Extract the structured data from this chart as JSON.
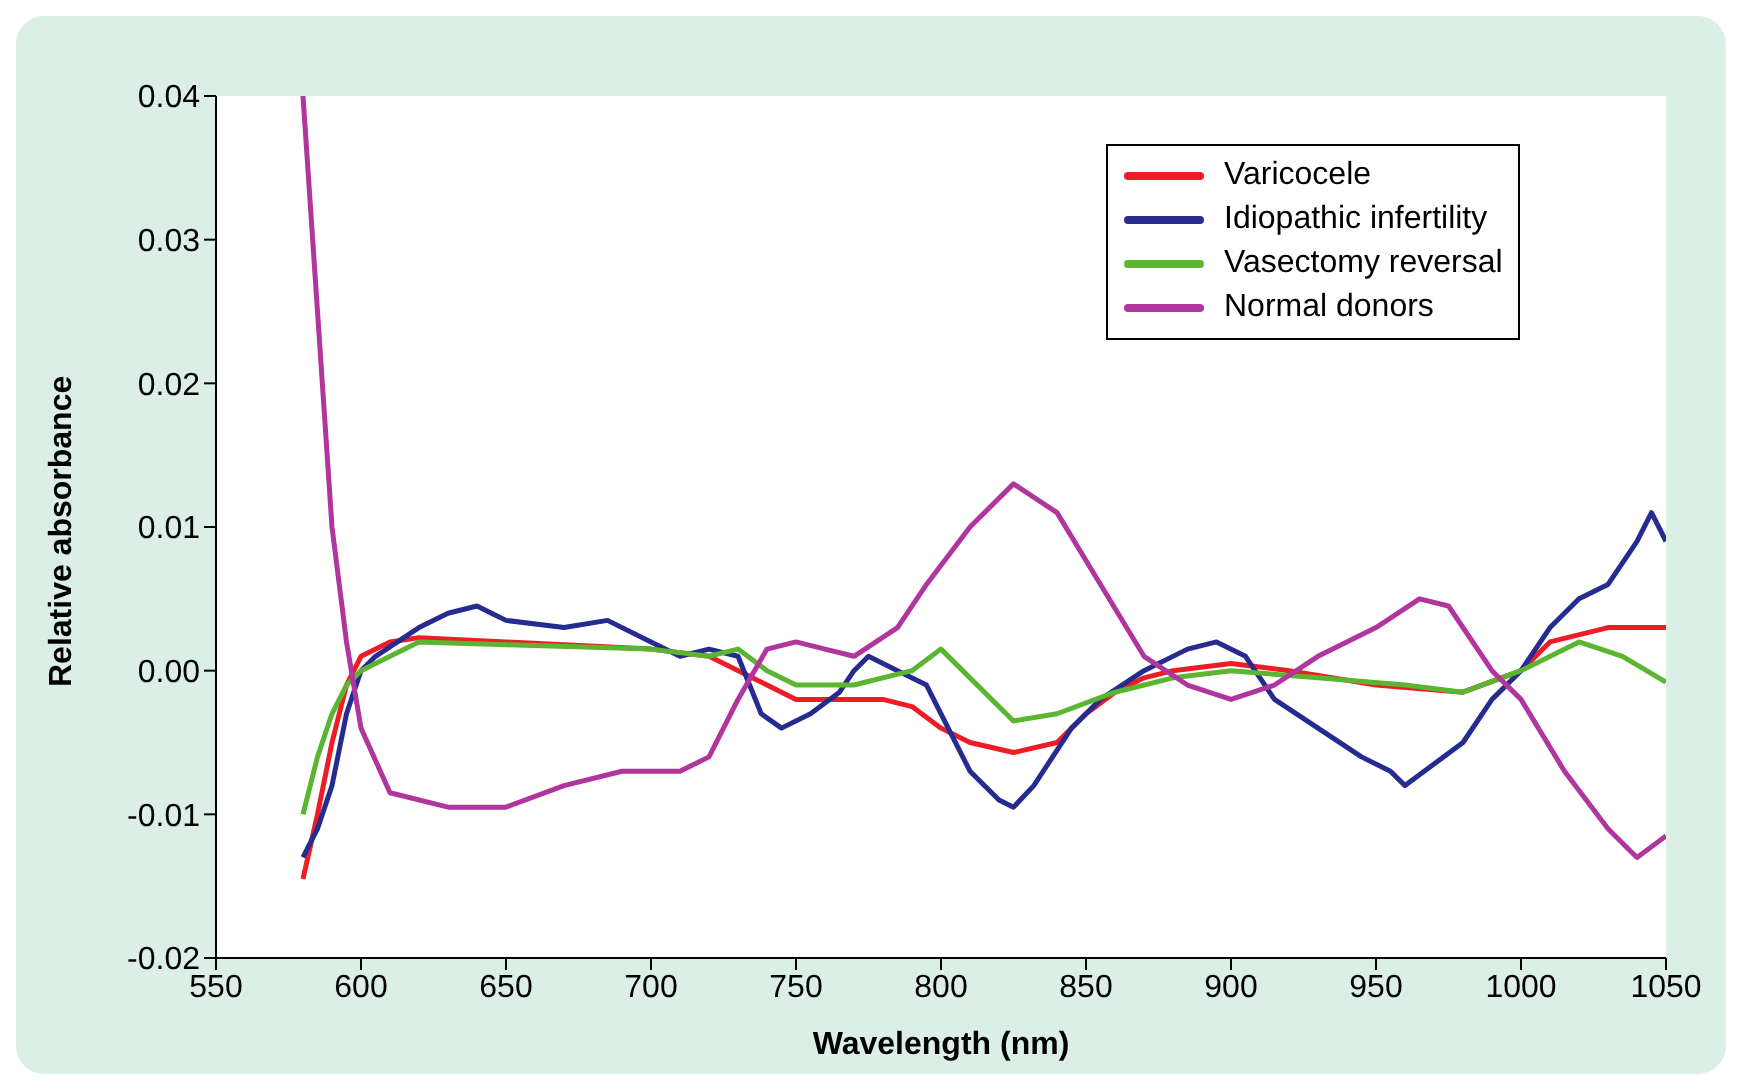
{
  "chart_data": {
    "type": "line",
    "xlabel": "Wavelength (nm)",
    "ylabel": "Relative absorbance",
    "xlim": [
      550,
      1050
    ],
    "xticks": [
      550,
      600,
      650,
      700,
      750,
      800,
      850,
      900,
      950,
      1000,
      1050
    ],
    "ylim": [
      -0.02,
      0.04
    ],
    "yticks": [
      {
        "value": -0.02,
        "label": "-0.02"
      },
      {
        "value": -0.01,
        "label": "-0.01"
      },
      {
        "value": 0,
        "label": "0.00"
      },
      {
        "value": 0.01,
        "label": "0.01"
      },
      {
        "value": 0.02,
        "label": "0.02"
      },
      {
        "value": 0.03,
        "label": "0.03"
      },
      {
        "value": 0.04,
        "label": "0.04"
      }
    ],
    "grid": false,
    "legend": "top right",
    "marker": "none",
    "line_style": "solid",
    "series": [
      {
        "name": "Varicocele",
        "color": "#ee1c25",
        "x": [
          580,
          585,
          590,
          595,
          600,
          610,
          620,
          650,
          700,
          720,
          740,
          750,
          780,
          790,
          800,
          810,
          825,
          840,
          850,
          860,
          870,
          880,
          900,
          920,
          950,
          980,
          1000,
          1010,
          1030,
          1050
        ],
        "values": [
          -0.0145,
          -0.01,
          -0.005,
          -0.001,
          0.001,
          0.002,
          0.0023,
          0.002,
          0.0015,
          0.001,
          -0.001,
          -0.002,
          -0.002,
          -0.0025,
          -0.004,
          -0.005,
          -0.0057,
          -0.005,
          -0.003,
          -0.0015,
          -0.0005,
          0,
          0.0005,
          0,
          -0.001,
          -0.0015,
          0,
          0.002,
          0.003,
          0.003
        ]
      },
      {
        "name": "Idiopathic infertility",
        "color": "#262c8f",
        "x": [
          580,
          585,
          590,
          595,
          600,
          605,
          620,
          630,
          640,
          645,
          650,
          670,
          685,
          700,
          710,
          720,
          730,
          738,
          745,
          755,
          765,
          770,
          775,
          785,
          795,
          800,
          810,
          820,
          825,
          832,
          845,
          855,
          870,
          885,
          895,
          905,
          915,
          930,
          945,
          955,
          960,
          970,
          980,
          990,
          1000,
          1010,
          1020,
          1030,
          1040,
          1045,
          1050
        ],
        "values": [
          -0.013,
          -0.011,
          -0.008,
          -0.003,
          0,
          0.001,
          0.003,
          0.004,
          0.0045,
          0.004,
          0.0035,
          0.003,
          0.0035,
          0.002,
          0.001,
          0.0015,
          0.001,
          -0.003,
          -0.004,
          -0.003,
          -0.0015,
          0,
          0.001,
          0,
          -0.001,
          -0.003,
          -0.007,
          -0.009,
          -0.0095,
          -0.008,
          -0.004,
          -0.002,
          0,
          0.0015,
          0.002,
          0.001,
          -0.002,
          -0.004,
          -0.006,
          -0.007,
          -0.008,
          -0.0065,
          -0.005,
          -0.002,
          0,
          0.003,
          0.005,
          0.006,
          0.009,
          0.011,
          0.009
        ]
      },
      {
        "name": "Vasectomy reversal",
        "color": "#5cb531",
        "x": [
          580,
          585,
          590,
          595,
          600,
          610,
          620,
          650,
          700,
          720,
          730,
          740,
          750,
          770,
          790,
          800,
          810,
          825,
          840,
          860,
          880,
          900,
          930,
          960,
          980,
          1000,
          1020,
          1035,
          1050
        ],
        "values": [
          -0.01,
          -0.006,
          -0.003,
          -0.001,
          0,
          0.001,
          0.002,
          0.0018,
          0.0015,
          0.001,
          0.0015,
          0,
          -0.001,
          -0.001,
          0,
          0.0015,
          -0.0005,
          -0.0035,
          -0.003,
          -0.0015,
          -0.0005,
          0,
          -0.0005,
          -0.001,
          -0.0015,
          0,
          0.002,
          0.001,
          -0.0008
        ]
      },
      {
        "name": "Normal donors",
        "color": "#b0359d",
        "x": [
          580,
          585,
          590,
          595,
          600,
          610,
          630,
          650,
          670,
          690,
          710,
          720,
          730,
          740,
          750,
          760,
          770,
          785,
          795,
          810,
          825,
          840,
          855,
          870,
          885,
          900,
          915,
          930,
          950,
          965,
          975,
          990,
          1000,
          1015,
          1030,
          1040,
          1050
        ],
        "values": [
          0.04,
          0.025,
          0.01,
          0.002,
          -0.004,
          -0.0085,
          -0.0095,
          -0.0095,
          -0.008,
          -0.007,
          -0.007,
          -0.006,
          -0.002,
          0.0015,
          0.002,
          0.0015,
          0.001,
          0.003,
          0.006,
          0.01,
          0.013,
          0.011,
          0.006,
          0.001,
          -0.001,
          -0.002,
          -0.001,
          0.001,
          0.003,
          0.005,
          0.0045,
          0,
          -0.002,
          -0.007,
          -0.011,
          -0.013,
          -0.0115
        ]
      }
    ]
  }
}
